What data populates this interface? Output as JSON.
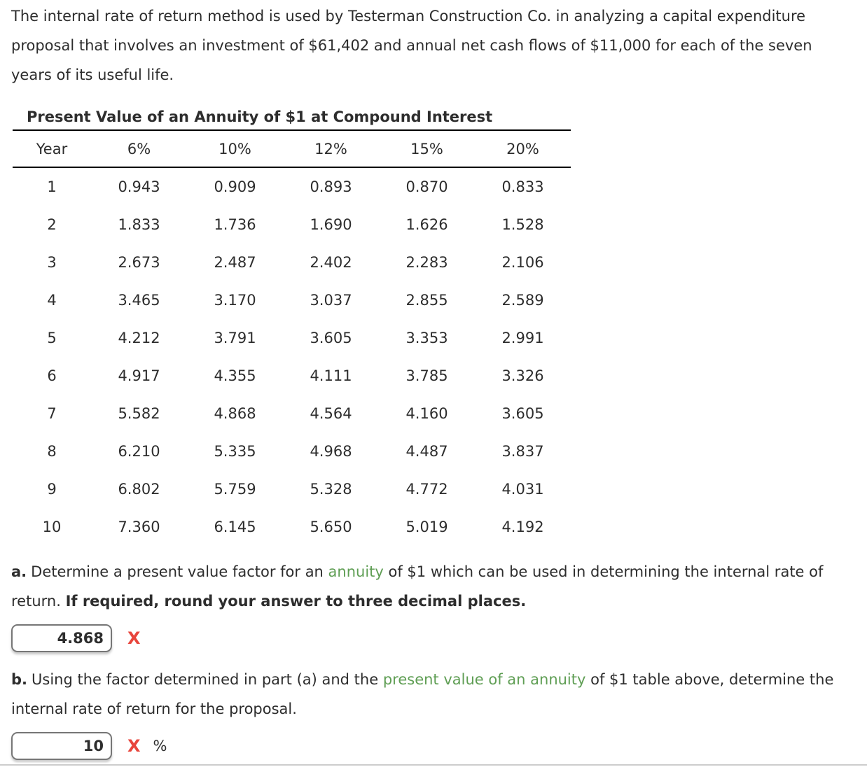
{
  "intro": {
    "text": "The internal rate of return method is used by Testerman Construction Co. in analyzing a capital expenditure proposal that involves an investment of $61,402 and annual net cash flows of $11,000 for each of the seven years of its useful life."
  },
  "table": {
    "title": "Present Value of an Annuity of $1 at Compound Interest",
    "headers": [
      "Year",
      "6%",
      "10%",
      "12%",
      "15%",
      "20%"
    ],
    "rows": [
      [
        "1",
        "0.943",
        "0.909",
        "0.893",
        "0.870",
        "0.833"
      ],
      [
        "2",
        "1.833",
        "1.736",
        "1.690",
        "1.626",
        "1.528"
      ],
      [
        "3",
        "2.673",
        "2.487",
        "2.402",
        "2.283",
        "2.106"
      ],
      [
        "4",
        "3.465",
        "3.170",
        "3.037",
        "2.855",
        "2.589"
      ],
      [
        "5",
        "4.212",
        "3.791",
        "3.605",
        "3.353",
        "2.991"
      ],
      [
        "6",
        "4.917",
        "4.355",
        "4.111",
        "3.785",
        "3.326"
      ],
      [
        "7",
        "5.582",
        "4.868",
        "4.564",
        "4.160",
        "3.605"
      ],
      [
        "8",
        "6.210",
        "5.335",
        "4.968",
        "4.487",
        "3.837"
      ],
      [
        "9",
        "6.802",
        "5.759",
        "5.328",
        "4.772",
        "4.031"
      ],
      [
        "10",
        "7.360",
        "6.145",
        "5.650",
        "5.019",
        "4.192"
      ]
    ]
  },
  "part_a": {
    "label": "a.",
    "text_before_link": "Determine a present value factor for an ",
    "link_text": "annuity",
    "text_after_link": " of $1 which can be used in determining the internal rate of return. ",
    "bold_text": "If required, round your answer to three decimal places.",
    "input_value": "4.868",
    "incorrect_mark": "X"
  },
  "part_b": {
    "label": "b.",
    "text_before_link": "Using the factor determined in part (a) and the ",
    "link_text": "present value of an annuity",
    "text_after_link": " of $1 table above, determine the internal rate of return for the proposal.",
    "input_value": "10",
    "incorrect_mark": "X",
    "unit": "%"
  },
  "colors": {
    "link_green": "#5f9e54",
    "error_red": "#e8453c",
    "text": "#2d2d2d",
    "table_rule": "#000000",
    "divider_gray": "#cdcdcd"
  }
}
